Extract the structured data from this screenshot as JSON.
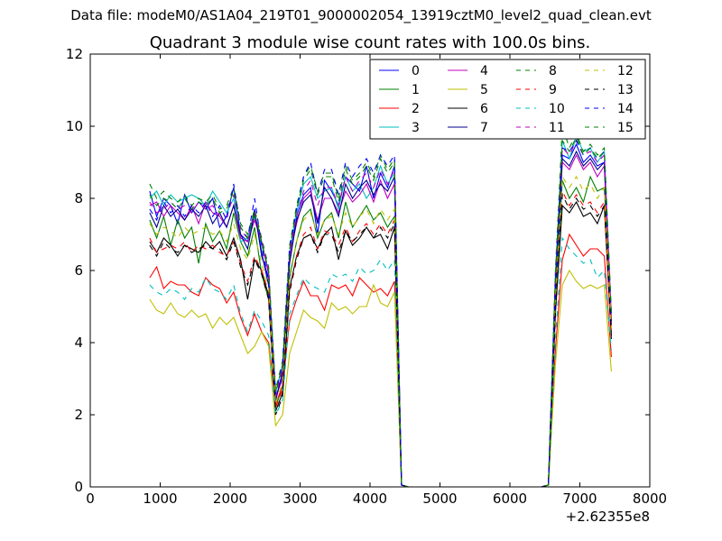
{
  "figure": {
    "suptitle": "Data file: modeM0/AS1A04_219T01_9000002054_13919cztM0_level2_quad_clean.evt"
  },
  "chart_data": {
    "type": "line",
    "title": "Quadrant 3 module wise count rates with 100.0s bins.",
    "xlabel": "",
    "ylabel": "",
    "x_offset_label": "+2.62355e8",
    "xlim": [
      0,
      8000
    ],
    "ylim": [
      0,
      12
    ],
    "xticks": [
      0,
      1000,
      2000,
      3000,
      4000,
      5000,
      6000,
      7000,
      8000
    ],
    "yticks": [
      0,
      2,
      4,
      6,
      8,
      10,
      12
    ],
    "grid": false,
    "legend": {
      "placement": "top-right",
      "columns": 4
    },
    "x": [
      850,
      950,
      1050,
      1150,
      1250,
      1350,
      1450,
      1550,
      1650,
      1750,
      1850,
      1950,
      2050,
      2150,
      2250,
      2350,
      2450,
      2550,
      2650,
      2750,
      2850,
      2950,
      3050,
      3150,
      3250,
      3350,
      3450,
      3550,
      3650,
      3750,
      3850,
      3950,
      4050,
      4150,
      4250,
      4350,
      4450,
      4550,
      4650,
      4750,
      4850,
      4950,
      5050,
      5150,
      5250,
      5350,
      5450,
      5550,
      5650,
      5750,
      5850,
      5950,
      6050,
      6150,
      6250,
      6350,
      6450,
      6550,
      6650,
      6750,
      6850,
      6950,
      7050,
      7150,
      7250,
      7350,
      7450
    ],
    "series": [
      {
        "name": "0",
        "color": "#0000ff",
        "dash": "solid",
        "values": [
          8.2,
          7.5,
          8.0,
          7.8,
          7.3,
          8.1,
          7.6,
          7.9,
          7.7,
          8.0,
          7.2,
          7.5,
          8.3,
          7.0,
          6.8,
          7.7,
          6.4,
          5.8,
          2.5,
          3.0,
          6.3,
          7.5,
          8.1,
          8.3,
          7.0,
          8.5,
          8.2,
          7.8,
          8.6,
          8.4,
          8.2,
          8.9,
          8.0,
          8.7,
          8.3,
          8.9,
          0.05,
          0,
          0,
          0,
          0,
          0,
          0,
          0,
          0,
          0,
          0,
          0,
          0,
          0,
          0,
          0,
          0,
          0,
          0,
          0,
          0,
          0.05,
          5.5,
          9.2,
          9.1,
          9.5,
          9.0,
          9.2,
          8.9,
          9.0,
          4.5
        ]
      },
      {
        "name": "1",
        "color": "#008000",
        "dash": "solid",
        "values": [
          7.4,
          6.9,
          7.5,
          6.7,
          7.4,
          6.9,
          7.2,
          6.2,
          7.3,
          6.8,
          7.1,
          6.6,
          7.6,
          6.8,
          6.4,
          7.2,
          5.9,
          5.2,
          2.2,
          2.8,
          5.8,
          6.8,
          7.5,
          7.7,
          6.9,
          7.4,
          7.6,
          6.9,
          7.9,
          7.2,
          7.5,
          7.8,
          7.4,
          7.6,
          7.2,
          7.5,
          0.05,
          0,
          0,
          0,
          0,
          0,
          0,
          0,
          0,
          0,
          0,
          0,
          0,
          0,
          0,
          0,
          0,
          0,
          0,
          0,
          0,
          0.05,
          5.0,
          8.5,
          8.0,
          8.3,
          7.9,
          8.6,
          8.2,
          8.3,
          4.3
        ]
      },
      {
        "name": "2",
        "color": "#ff0000",
        "dash": "solid",
        "values": [
          5.8,
          6.1,
          5.5,
          5.7,
          5.6,
          5.6,
          5.4,
          5.3,
          5.8,
          5.6,
          5.5,
          5.1,
          5.4,
          4.7,
          4.2,
          4.8,
          4.3,
          4.0,
          2.3,
          2.8,
          4.6,
          5.2,
          5.7,
          5.3,
          5.3,
          4.9,
          5.6,
          5.5,
          5.6,
          5.3,
          5.8,
          5.6,
          5.4,
          5.5,
          5.3,
          5.7,
          0.05,
          0,
          0,
          0,
          0,
          0,
          0,
          0,
          0,
          0,
          0,
          0,
          0,
          0,
          0,
          0,
          0,
          0,
          0,
          0,
          0,
          0.05,
          3.8,
          6.3,
          7.0,
          6.7,
          6.4,
          6.6,
          6.6,
          6.4,
          3.6
        ]
      },
      {
        "name": "3",
        "color": "#00bfbf",
        "dash": "solid",
        "values": [
          8.0,
          8.2,
          7.8,
          8.1,
          7.9,
          8.0,
          8.1,
          8.0,
          7.8,
          8.2,
          7.9,
          7.6,
          8.0,
          6.8,
          6.9,
          7.5,
          6.7,
          6.0,
          2.6,
          3.4,
          6.5,
          7.6,
          8.4,
          8.6,
          8.0,
          8.2,
          8.3,
          7.7,
          8.6,
          8.2,
          8.4,
          8.0,
          8.3,
          8.9,
          8.4,
          8.7,
          0.05,
          0,
          0,
          0,
          0,
          0,
          0,
          0,
          0,
          0,
          0,
          0,
          0,
          0,
          0,
          0,
          0,
          0,
          0,
          0,
          0,
          0.05,
          5.8,
          9.6,
          9.1,
          9.7,
          9.3,
          9.4,
          9.0,
          9.3,
          4.6
        ]
      },
      {
        "name": "4",
        "color": "#bf00bf",
        "dash": "solid",
        "values": [
          7.8,
          7.9,
          7.5,
          7.8,
          7.6,
          7.4,
          7.8,
          7.3,
          7.9,
          7.6,
          7.5,
          7.2,
          7.8,
          6.9,
          6.8,
          7.4,
          6.8,
          5.9,
          2.4,
          3.1,
          6.4,
          7.3,
          8.0,
          8.2,
          7.4,
          8.0,
          8.0,
          7.6,
          8.2,
          7.9,
          8.1,
          8.4,
          7.9,
          8.5,
          8.0,
          8.4,
          0.05,
          0,
          0,
          0,
          0,
          0,
          0,
          0,
          0,
          0,
          0,
          0,
          0,
          0,
          0,
          0,
          0,
          0,
          0,
          0,
          0,
          0.05,
          5.6,
          9.0,
          8.8,
          9.2,
          8.8,
          9.0,
          8.6,
          8.9,
          4.4
        ]
      },
      {
        "name": "5",
        "color": "#bfbf00",
        "dash": "solid",
        "values": [
          5.2,
          4.9,
          4.8,
          5.1,
          4.8,
          4.7,
          4.9,
          4.7,
          4.8,
          4.4,
          4.7,
          4.5,
          4.7,
          4.2,
          3.7,
          3.9,
          4.3,
          3.9,
          1.7,
          2.0,
          3.7,
          4.3,
          4.9,
          4.7,
          4.6,
          4.4,
          5.1,
          4.9,
          5.0,
          4.8,
          5.0,
          5.0,
          5.6,
          5.1,
          5.0,
          5.4,
          0.05,
          0,
          0,
          0,
          0,
          0,
          0,
          0,
          0,
          0,
          0,
          0,
          0,
          0,
          0,
          0,
          0,
          0,
          0,
          0,
          0,
          0.05,
          3.4,
          5.6,
          6.0,
          5.7,
          5.5,
          5.6,
          5.5,
          5.6,
          3.2
        ]
      },
      {
        "name": "6",
        "color": "#000000",
        "dash": "solid",
        "values": [
          6.8,
          6.5,
          6.9,
          6.7,
          6.4,
          6.7,
          6.6,
          6.5,
          6.8,
          6.6,
          6.8,
          6.4,
          6.9,
          6.3,
          5.2,
          6.3,
          6.0,
          5.3,
          2.1,
          2.6,
          5.5,
          6.4,
          6.9,
          7.0,
          6.6,
          7.0,
          7.2,
          6.3,
          7.1,
          6.7,
          6.9,
          7.2,
          6.9,
          7.0,
          6.6,
          7.2,
          0.05,
          0,
          0,
          0,
          0,
          0,
          0,
          0,
          0,
          0,
          0,
          0,
          0,
          0,
          0,
          0,
          0,
          0,
          0,
          0,
          0,
          0.05,
          4.8,
          7.8,
          7.6,
          7.9,
          7.5,
          7.6,
          7.3,
          7.8,
          4.1
        ]
      },
      {
        "name": "7",
        "color": "#00008b",
        "dash": "solid",
        "values": [
          7.6,
          7.2,
          7.8,
          7.5,
          7.7,
          7.4,
          7.7,
          7.5,
          7.8,
          7.3,
          7.6,
          7.2,
          7.8,
          7.0,
          6.6,
          7.6,
          6.5,
          5.6,
          2.4,
          3.2,
          6.2,
          7.4,
          7.9,
          8.1,
          7.3,
          8.3,
          8.0,
          7.5,
          8.4,
          8.0,
          8.3,
          8.5,
          8.1,
          8.4,
          8.2,
          8.6,
          0.05,
          0,
          0,
          0,
          0,
          0,
          0,
          0,
          0,
          0,
          0,
          0,
          0,
          0,
          0,
          0,
          0,
          0,
          0,
          0,
          0,
          0.05,
          5.4,
          9.1,
          8.9,
          9.3,
          8.9,
          9.1,
          8.8,
          9.0,
          4.6
        ]
      },
      {
        "name": "8",
        "color": "#008000",
        "dash": "dashed",
        "values": [
          8.4,
          8.0,
          8.2,
          8.0,
          7.9,
          8.1,
          7.8,
          8.0,
          7.9,
          8.1,
          7.7,
          7.8,
          8.3,
          7.3,
          7.0,
          7.7,
          6.9,
          6.1,
          2.7,
          3.5,
          6.7,
          7.8,
          8.6,
          8.9,
          8.2,
          8.7,
          8.7,
          8.0,
          8.9,
          8.5,
          8.7,
          9.0,
          8.6,
          9.2,
          8.8,
          9.1,
          0.05,
          0,
          0,
          0,
          0,
          0,
          0,
          0,
          0,
          0,
          0,
          0,
          0,
          0,
          0,
          0,
          0,
          0,
          0,
          0,
          0,
          0.05,
          6.0,
          10.0,
          9.4,
          9.8,
          9.3,
          9.5,
          9.2,
          9.4,
          4.8
        ]
      },
      {
        "name": "9",
        "color": "#ff0000",
        "dash": "dashed",
        "values": [
          6.9,
          6.5,
          6.6,
          6.7,
          6.6,
          6.8,
          6.5,
          6.7,
          6.6,
          6.7,
          6.5,
          6.4,
          6.8,
          6.2,
          5.7,
          6.4,
          6.0,
          5.4,
          2.2,
          2.7,
          5.5,
          6.4,
          7.0,
          7.2,
          6.6,
          7.1,
          7.0,
          6.7,
          7.2,
          6.8,
          7.1,
          7.3,
          7.0,
          7.3,
          7.0,
          7.4,
          0.05,
          0,
          0,
          0,
          0,
          0,
          0,
          0,
          0,
          0,
          0,
          0,
          0,
          0,
          0,
          0,
          0,
          0,
          0,
          0,
          0,
          0.05,
          4.9,
          8.2,
          7.8,
          8.1,
          7.8,
          7.9,
          7.6,
          7.9,
          4.2
        ]
      },
      {
        "name": "10",
        "color": "#00bfbf",
        "dash": "dashed",
        "values": [
          5.6,
          5.4,
          5.3,
          5.5,
          5.4,
          5.2,
          5.5,
          5.4,
          5.8,
          5.5,
          5.4,
          5.2,
          5.6,
          4.8,
          4.3,
          4.9,
          4.6,
          4.2,
          2.0,
          2.4,
          4.8,
          5.3,
          5.8,
          5.6,
          5.5,
          5.4,
          5.9,
          5.8,
          5.9,
          5.7,
          6.1,
          5.9,
          6.0,
          6.3,
          6.0,
          6.3,
          0.05,
          0,
          0,
          0,
          0,
          0,
          0,
          0,
          0,
          0,
          0,
          0,
          0,
          0,
          0,
          0,
          0,
          0,
          0,
          0,
          0,
          0.05,
          4.1,
          6.9,
          6.6,
          6.4,
          6.2,
          6.3,
          5.8,
          6.0,
          3.8
        ]
      },
      {
        "name": "11",
        "color": "#bf00bf",
        "dash": "dashed",
        "values": [
          7.9,
          7.6,
          7.7,
          7.9,
          7.7,
          7.8,
          7.6,
          7.9,
          7.7,
          7.8,
          7.5,
          7.5,
          8.1,
          7.1,
          6.9,
          7.6,
          6.8,
          6.0,
          2.5,
          3.3,
          6.5,
          7.5,
          8.2,
          8.5,
          7.8,
          8.3,
          8.3,
          7.8,
          8.6,
          8.2,
          8.5,
          8.7,
          8.3,
          8.8,
          8.4,
          8.8,
          0.05,
          0,
          0,
          0,
          0,
          0,
          0,
          0,
          0,
          0,
          0,
          0,
          0,
          0,
          0,
          0,
          0,
          0,
          0,
          0,
          0,
          0.05,
          5.8,
          9.4,
          9.2,
          9.6,
          9.2,
          9.3,
          9.0,
          9.2,
          4.7
        ]
      },
      {
        "name": "12",
        "color": "#bfbf00",
        "dash": "dashed",
        "values": [
          7.3,
          7.0,
          7.2,
          7.1,
          6.9,
          7.2,
          7.0,
          7.1,
          7.2,
          7.0,
          7.1,
          6.8,
          7.3,
          6.6,
          6.3,
          7.0,
          6.2,
          5.5,
          2.3,
          2.9,
          5.9,
          6.8,
          7.4,
          7.6,
          7.0,
          7.4,
          7.5,
          7.0,
          7.6,
          7.2,
          7.5,
          7.7,
          7.3,
          7.7,
          7.4,
          7.7,
          0.05,
          0,
          0,
          0,
          0,
          0,
          0,
          0,
          0,
          0,
          0,
          0,
          0,
          0,
          0,
          0,
          0,
          0,
          0,
          0,
          0,
          0.05,
          5.2,
          8.6,
          8.3,
          8.6,
          8.2,
          8.4,
          8.0,
          8.3,
          4.4
        ]
      },
      {
        "name": "13",
        "color": "#000000",
        "dash": "dashed",
        "values": [
          6.7,
          6.4,
          6.8,
          6.6,
          6.5,
          6.7,
          6.5,
          6.6,
          6.7,
          6.6,
          6.6,
          6.3,
          6.8,
          6.1,
          5.6,
          6.3,
          5.9,
          5.2,
          2.0,
          2.5,
          5.4,
          6.3,
          6.9,
          7.0,
          6.5,
          7.0,
          7.0,
          6.5,
          7.1,
          6.8,
          7.0,
          7.2,
          6.9,
          7.2,
          6.9,
          7.3,
          0.05,
          0,
          0,
          0,
          0,
          0,
          0,
          0,
          0,
          0,
          0,
          0,
          0,
          0,
          0,
          0,
          0,
          0,
          0,
          0,
          0,
          0.05,
          4.8,
          8.1,
          7.7,
          8.0,
          7.7,
          7.8,
          7.5,
          7.8,
          4.2
        ]
      },
      {
        "name": "14",
        "color": "#0000ff",
        "dash": "dashed",
        "values": [
          7.7,
          7.4,
          7.9,
          7.6,
          7.8,
          7.5,
          7.8,
          7.6,
          7.9,
          7.5,
          7.8,
          7.4,
          8.4,
          7.2,
          6.9,
          8.0,
          6.7,
          5.7,
          2.6,
          3.4,
          6.6,
          7.7,
          8.6,
          9.0,
          8.1,
          8.8,
          8.8,
          8.1,
          9.0,
          8.6,
          8.9,
          9.1,
          8.7,
          9.2,
          8.9,
          9.2,
          0.05,
          0,
          0,
          0,
          0,
          0,
          0,
          0,
          0,
          0,
          0,
          0,
          0,
          0,
          0,
          0,
          0,
          0,
          0,
          0,
          0,
          0.05,
          5.7,
          9.4,
          9.3,
          9.6,
          9.2,
          9.4,
          9.1,
          9.3,
          4.7
        ]
      },
      {
        "name": "15",
        "color": "#008000",
        "dash": "dashed",
        "values": [
          8.1,
          7.8,
          8.0,
          7.9,
          7.7,
          8.0,
          7.7,
          7.9,
          7.8,
          8.0,
          7.6,
          7.7,
          8.2,
          7.2,
          6.9,
          7.6,
          6.8,
          6.0,
          2.6,
          3.4,
          6.6,
          7.7,
          8.5,
          8.8,
          8.1,
          8.6,
          8.6,
          7.9,
          8.8,
          8.4,
          8.6,
          8.9,
          8.5,
          9.1,
          8.7,
          9.0,
          0.05,
          0,
          0,
          0,
          0,
          0,
          0,
          0,
          0,
          0,
          0,
          0,
          0,
          0,
          0,
          0,
          0,
          0,
          0,
          0,
          0,
          0.05,
          5.9,
          9.6,
          9.3,
          9.7,
          9.2,
          9.4,
          9.1,
          9.3,
          4.8
        ]
      }
    ]
  }
}
